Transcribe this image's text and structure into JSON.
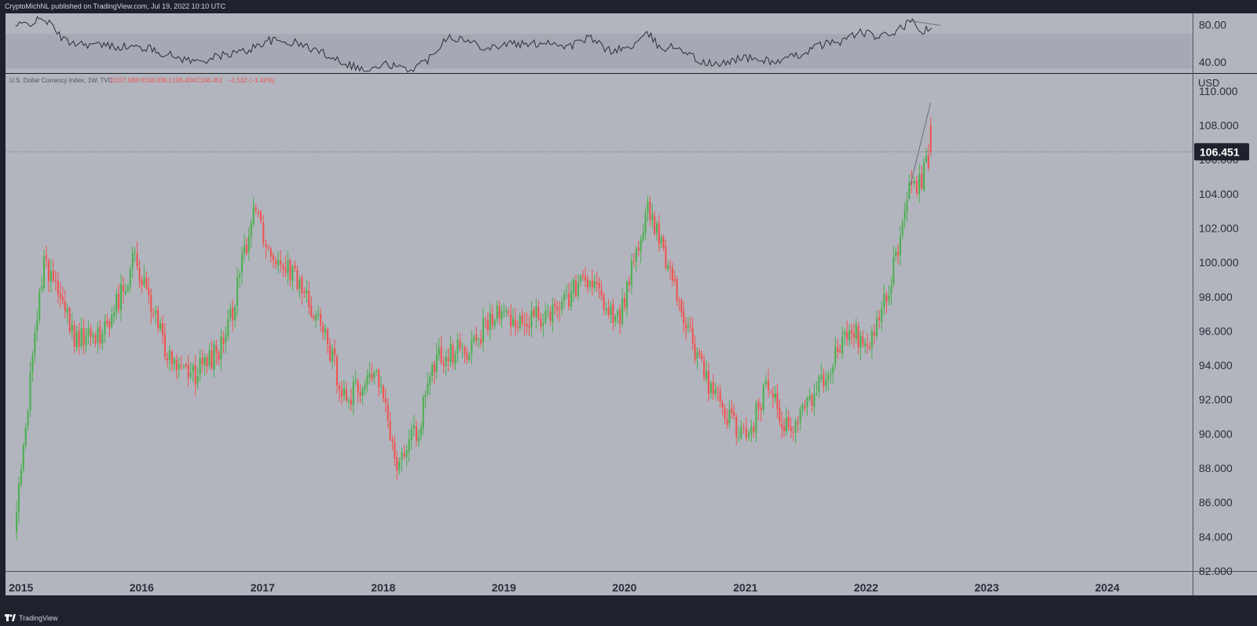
{
  "header": {
    "attribution": "CryptoMichNL published on TradingView.com, Jul 19, 2022 10:10 UTC"
  },
  "footer": {
    "brand": "TradingView",
    "logo_icon": "tradingview-logo-icon"
  },
  "legend": {
    "symbol": "U.S. Dollar Currency Index, 1W, TVC",
    "open": "O107.983",
    "high": "H108.036",
    "low": "L106.404",
    "close": "C106.451",
    "change": "−1.532 (−1.42%)"
  },
  "colors": {
    "background": "#b2b5be",
    "frame": "#1e222d",
    "up": "#26a69a",
    "up_candle": "#4caf50",
    "down": "#ef5350",
    "price_label_bg": "#1e222d",
    "indicator_line": "#2a2e39",
    "rsi_band": "#a6a9b3"
  },
  "chart_data": [
    {
      "type": "candlestick",
      "title": "U.S. Dollar Currency Index, 1W, TVC",
      "currency_label": "USD",
      "x": [
        "2014-12",
        "2015-03",
        "2015-06",
        "2015-09",
        "2015-12",
        "2016-03",
        "2016-06",
        "2016-09",
        "2016-12",
        "2017-01",
        "2017-03",
        "2017-06",
        "2017-09",
        "2017-12",
        "2018-02",
        "2018-04",
        "2018-06",
        "2018-09",
        "2018-12",
        "2019-03",
        "2019-06",
        "2019-09",
        "2019-12",
        "2020-03",
        "2020-05",
        "2020-07",
        "2020-09",
        "2020-12",
        "2021-01",
        "2021-03",
        "2021-05",
        "2021-08",
        "2021-11",
        "2022-01",
        "2022-03",
        "2022-05",
        "2022-06",
        "2022-07-19"
      ],
      "y": [
        84.5,
        100.3,
        95.5,
        96.0,
        100.2,
        95.0,
        93.5,
        95.4,
        103.7,
        101.0,
        100.0,
        97.0,
        92.0,
        93.5,
        88.5,
        90.0,
        94.5,
        95.0,
        97.0,
        96.5,
        97.5,
        99.0,
        96.5,
        103.0,
        100.0,
        96.0,
        93.0,
        90.0,
        90.0,
        93.0,
        90.0,
        93.0,
        96.0,
        95.0,
        98.5,
        104.0,
        104.5,
        106.451
      ],
      "last_price": "106.451",
      "projection": {
        "x": [
          "2022-05",
          "2022-07"
        ],
        "y": [
          104.5,
          109.3
        ]
      },
      "ylim": [
        82,
        111
      ],
      "yticks": [
        "82.000",
        "84.000",
        "86.000",
        "88.000",
        "90.000",
        "92.000",
        "94.000",
        "96.000",
        "98.000",
        "100.000",
        "102.000",
        "104.000",
        "106.000",
        "108.000",
        "110.000"
      ],
      "xticks": [
        "2015",
        "2016",
        "2017",
        "2018",
        "2019",
        "2020",
        "2021",
        "2022",
        "2023",
        "2024"
      ],
      "grid": false
    },
    {
      "type": "line",
      "title": "",
      "ylim": [
        28,
        92
      ],
      "yticks": [
        "40.00",
        "80.00"
      ],
      "band": [
        33,
        70
      ],
      "x": [
        "2014-12",
        "2015-03",
        "2015-05",
        "2015-08",
        "2015-11",
        "2016-01",
        "2016-04",
        "2016-06",
        "2016-09",
        "2016-11",
        "2017-01",
        "2017-04",
        "2017-07",
        "2017-09",
        "2017-11",
        "2018-01",
        "2018-03",
        "2018-05",
        "2018-07",
        "2018-09",
        "2018-11",
        "2019-01",
        "2019-03",
        "2019-05",
        "2019-07",
        "2019-09",
        "2019-11",
        "2020-01",
        "2020-03",
        "2020-04",
        "2020-06",
        "2020-08",
        "2020-10",
        "2020-12",
        "2021-02",
        "2021-04",
        "2021-06",
        "2021-08",
        "2021-10",
        "2021-12",
        "2022-02",
        "2022-04",
        "2022-05",
        "2022-06",
        "2022-07-19"
      ],
      "values": [
        78,
        86,
        62,
        58,
        56,
        55,
        45,
        40,
        48,
        52,
        63,
        60,
        48,
        38,
        30,
        38,
        30,
        42,
        68,
        62,
        55,
        60,
        58,
        62,
        56,
        66,
        52,
        55,
        70,
        55,
        56,
        40,
        36,
        45,
        42,
        40,
        48,
        58,
        62,
        72,
        66,
        75,
        84,
        72,
        76
      ],
      "trendline": {
        "x": [
          "2022-05",
          "2022-08"
        ],
        "y": [
          84,
          79
        ]
      }
    }
  ]
}
